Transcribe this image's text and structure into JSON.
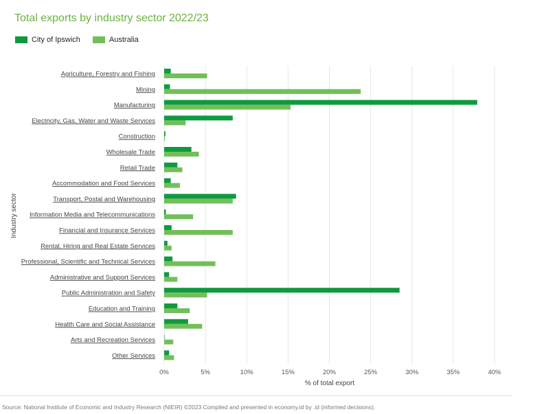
{
  "chart_data": {
    "type": "bar",
    "orientation": "horizontal",
    "title": "Total exports by industry sector 2022/23",
    "xlabel": "% of total export",
    "ylabel": "Industry sector",
    "xlim": [
      0,
      40
    ],
    "xticks": [
      0,
      5,
      10,
      15,
      20,
      25,
      30,
      35,
      40
    ],
    "xtick_labels": [
      "0%",
      "5%",
      "10%",
      "15%",
      "20%",
      "25%",
      "30%",
      "35%",
      "40%"
    ],
    "grid": "vertical",
    "legend_position": "top-left",
    "categories": [
      "Agriculture, Forestry and Fishing",
      "Mining",
      "Manufacturing",
      "Electricity, Gas, Water and Waste Services",
      "Construction",
      "Wholesale Trade",
      "Retail Trade",
      "Accommodation and Food Services",
      "Transport, Postal and Warehousing",
      "Information Media and Telecommunications",
      "Financial and Insurance Services",
      "Rental, Hiring and Real Estate Services",
      "Professional, Scientific and Technical Services",
      "Administrative and Support Services",
      "Public Administration and Safety",
      "Education and Training",
      "Health Care and Social Assistance",
      "Arts and Recreation Services",
      "Other Services"
    ],
    "series": [
      {
        "name": "City of Ipswich",
        "color": "#0e9a3e",
        "values": [
          0.8,
          0.7,
          37.9,
          8.3,
          0.15,
          3.3,
          1.6,
          0.8,
          8.7,
          0.2,
          0.9,
          0.4,
          1.0,
          0.6,
          28.5,
          1.6,
          2.9,
          0.05,
          0.6
        ]
      },
      {
        "name": "Australia",
        "color": "#72bf5a",
        "values": [
          5.2,
          23.8,
          15.3,
          2.6,
          0.1,
          4.2,
          2.2,
          1.9,
          8.3,
          3.5,
          8.3,
          0.9,
          6.2,
          1.6,
          5.2,
          3.1,
          4.6,
          1.1,
          1.2
        ]
      }
    ]
  },
  "source": "Source: National Institute of Economic and Industry Research (NIEIR) ©2023 Compiled and presented in economy.id by .id (informed decisions)."
}
